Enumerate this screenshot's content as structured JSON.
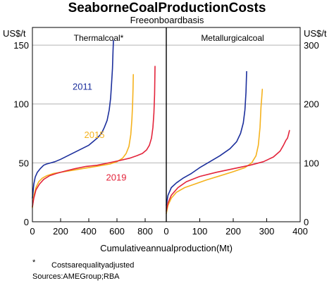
{
  "chart_data": {
    "title": "SeaborneCoalProductionCosts",
    "subtitle": "Freeonboardbasis",
    "xlabel": "Cumulativeannualproduction(Mt)",
    "notes": [
      "*",
      "Costsarequalityadjusted"
    ],
    "sources": "Sources:AMEGroup;RBA",
    "colors": {
      "2011": "#1c2f9c",
      "2015": "#f5b21d",
      "2019": "#e3243b",
      "grid": "#b4b4b4"
    },
    "panels": [
      {
        "title": "Thermalcoal*",
        "type": "line",
        "ylabel": "US$/t",
        "ylim": [
          0,
          165
        ],
        "yticks": [
          0,
          50,
          100,
          150
        ],
        "xlim": [
          0,
          950
        ],
        "xticks": [
          0,
          200,
          400,
          600,
          800
        ],
        "grid": true,
        "series": [
          {
            "name": "2011",
            "color": "#1c2f9c",
            "label_at": [
              355,
              115
            ],
            "x": [
              0,
              10,
              20,
              35,
              55,
              80,
              100,
              130,
              160,
              200,
              250,
              300,
              350,
              400,
              430,
              460,
              490,
              510,
              530,
              545,
              555,
              562,
              568,
              572,
              575
            ],
            "y": [
              20,
              32,
              38,
              42,
              45,
              48,
              49,
              50,
              51,
              53,
              56,
              59,
              62,
              65,
              68,
              71,
              75,
              80,
              86,
              95,
              105,
              118,
              130,
              145,
              154
            ]
          },
          {
            "name": "2015",
            "color": "#f5b21d",
            "label_at": [
              440,
              74
            ],
            "x": [
              0,
              10,
              25,
              45,
              70,
              100,
              150,
              200,
              250,
              300,
              350,
              400,
              450,
              500,
              550,
              600,
              640,
              665,
              685,
              698,
              706,
              711,
              714,
              716
            ],
            "y": [
              12,
              22,
              29,
              34,
              37,
              39,
              41,
              42,
              43,
              44,
              45,
              46,
              47,
              48,
              49,
              51,
              54,
              58,
              64,
              74,
              87,
              100,
              113,
              125
            ]
          },
          {
            "name": "2019",
            "color": "#e3243b",
            "label_at": [
              595,
              38
            ],
            "x": [
              0,
              10,
              25,
              50,
              80,
              120,
              170,
              230,
              300,
              380,
              460,
              540,
              620,
              690,
              740,
              780,
              810,
              830,
              845,
              855,
              862,
              867,
              870
            ],
            "y": [
              13,
              20,
              27,
              32,
              36,
              39,
              41,
              43,
              45,
              47,
              48,
              50,
              52,
              54,
              56,
              58,
              61,
              65,
              71,
              80,
              92,
              108,
              132
            ]
          }
        ]
      },
      {
        "title": "Metallurgicalcoal",
        "type": "line",
        "ylabel": "US$/t",
        "ylim": [
          0,
          330
        ],
        "yticks": [
          0,
          100,
          200,
          300
        ],
        "xlim": [
          0,
          400
        ],
        "xticks": [
          0,
          100,
          200,
          300,
          400
        ],
        "grid": true,
        "series": [
          {
            "name": "2011",
            "color": "#1c2f9c",
            "x": [
              0,
              5,
              15,
              30,
              50,
              75,
              100,
              130,
              160,
              190,
              210,
              222,
              230,
              235,
              238,
              240
            ],
            "y": [
              28,
              45,
              58,
              66,
              74,
              82,
              92,
              102,
              112,
              124,
              136,
              150,
              168,
              190,
              220,
              255
            ]
          },
          {
            "name": "2015",
            "color": "#f5b21d",
            "x": [
              0,
              5,
              15,
              30,
              55,
              85,
              120,
              160,
              200,
              235,
              255,
              268,
              275,
              280,
              283,
              285,
              287
            ],
            "y": [
              14,
              28,
              40,
              50,
              58,
              64,
              71,
              78,
              85,
              92,
              100,
              112,
              130,
              160,
              195,
              210,
              225
            ]
          },
          {
            "name": "2019",
            "color": "#e3243b",
            "x": [
              0,
              5,
              15,
              35,
              60,
              100,
              150,
              200,
              250,
              290,
              320,
              340,
              350,
              357,
              362,
              365,
              368
            ],
            "y": [
              18,
              32,
              45,
              58,
              68,
              77,
              84,
              90,
              96,
              102,
              110,
              120,
              130,
              138,
              142,
              148,
              155
            ]
          }
        ]
      }
    ]
  }
}
